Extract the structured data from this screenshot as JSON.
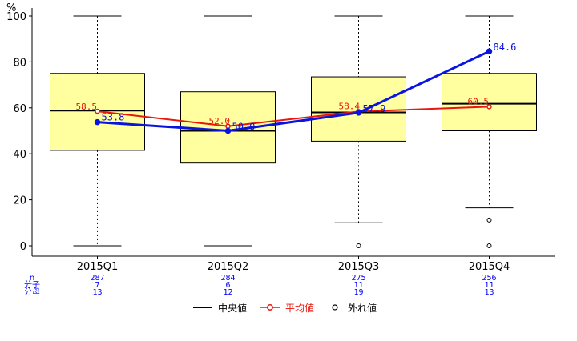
{
  "chart_data": {
    "type": "box",
    "ylabel": "%",
    "ylim": [
      0,
      100
    ],
    "yticks": [
      0,
      20,
      40,
      60,
      80,
      100
    ],
    "categories": [
      "2015Q1",
      "2015Q2",
      "2015Q3",
      "2015Q4"
    ],
    "boxes": [
      {
        "min": 0,
        "q1": 41.5,
        "median": 58.8,
        "q3": 75,
        "max": 100,
        "outliers": []
      },
      {
        "min": 0,
        "q1": 36,
        "median": 50,
        "q3": 67,
        "max": 100,
        "outliers": []
      },
      {
        "min": 10,
        "q1": 45.5,
        "median": 58,
        "q3": 73.5,
        "max": 100,
        "outliers": [
          0
        ]
      },
      {
        "min": 16.5,
        "q1": 50,
        "median": 61.8,
        "q3": 75,
        "max": 100,
        "outliers": [
          11.2,
          0
        ]
      }
    ],
    "series": [
      {
        "name": "平均値",
        "color": "#e8160c",
        "values": [
          58.5,
          52.0,
          58.4,
          60.5
        ],
        "labels": [
          "58.5",
          "52.0",
          "58.4",
          "60.5"
        ]
      },
      {
        "name": "",
        "color": "#0a14e0",
        "values": [
          53.8,
          50.0,
          57.9,
          84.6
        ],
        "labels": [
          "53.8",
          "50.0",
          "57.9",
          "84.6"
        ]
      }
    ],
    "n_row": {
      "label": "n",
      "values": [
        "287",
        "284",
        "275",
        "256"
      ]
    },
    "numerator_row": {
      "label": "分子",
      "values": [
        "7",
        "6",
        "11",
        "11"
      ]
    },
    "denominator_row": {
      "label": "分母",
      "values": [
        "13",
        "12",
        "19",
        "13"
      ]
    },
    "legend": {
      "median": "中央値",
      "mean": "平均値",
      "outlier": "外れ値",
      "position": "bottom"
    },
    "colors": {
      "box_fill": "#ffff9f",
      "table_text": "#0000ff",
      "mean_line": "#e8160c",
      "blue_line": "#0a14e0"
    }
  }
}
